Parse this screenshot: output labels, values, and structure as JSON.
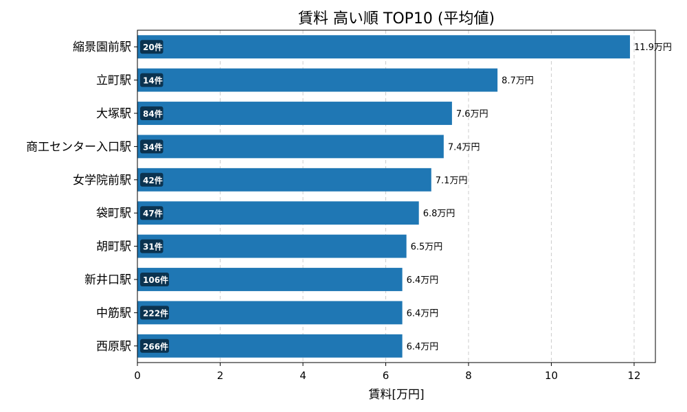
{
  "chart_data": {
    "type": "bar",
    "orientation": "horizontal",
    "title": "賃料 高い順 TOP10 (平均値)",
    "xlabel": "賃料[万円]",
    "ylabel": "",
    "xlim": [
      0,
      12.5
    ],
    "xticks": [
      0,
      2,
      4,
      6,
      8,
      10,
      12
    ],
    "grid": "x-dashed",
    "bar_color": "#1f77b4",
    "count_badge_color": "#0b3350",
    "categories": [
      "縮景園前駅",
      "立町駅",
      "大塚駅",
      "商工センター入口駅",
      "女学院前駅",
      "袋町駅",
      "胡町駅",
      "新井口駅",
      "中筋駅",
      "西原駅"
    ],
    "values": [
      11.9,
      8.7,
      7.6,
      7.4,
      7.1,
      6.8,
      6.5,
      6.4,
      6.4,
      6.4
    ],
    "value_labels": [
      "11.9万円",
      "8.7万円",
      "7.6万円",
      "7.4万円",
      "7.1万円",
      "6.8万円",
      "6.5万円",
      "6.4万円",
      "6.4万円",
      "6.4万円"
    ],
    "counts": [
      "20件",
      "14件",
      "84件",
      "34件",
      "42件",
      "47件",
      "31件",
      "106件",
      "222件",
      "266件"
    ]
  }
}
